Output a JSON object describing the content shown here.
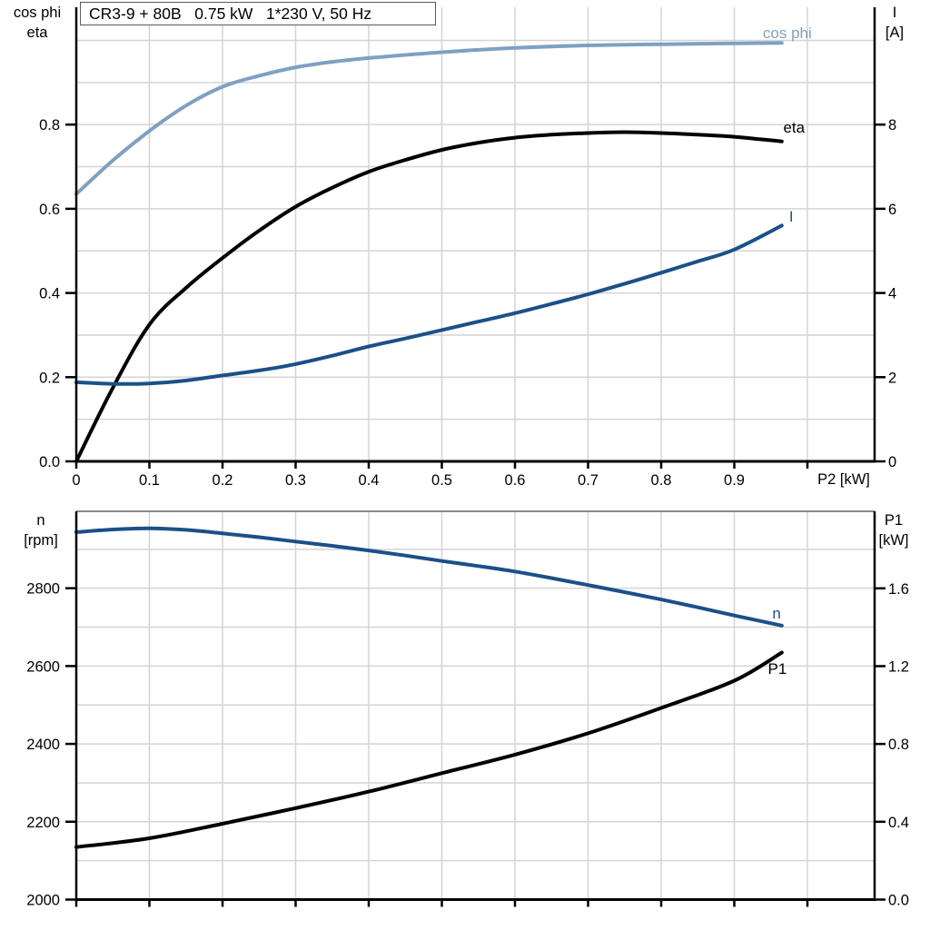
{
  "title_box": {
    "text": "CR3-9 + 80B   0.75 kW   1*230 V, 50 Hz"
  },
  "colors": {
    "light_blue": "#7FA0C2",
    "dark_blue": "#1B5088",
    "black": "#000000",
    "grid": "#D4D4D4",
    "axis": "#000000",
    "panel_border": "#8A8A8A"
  },
  "chart_data": [
    {
      "id": "motor-efficiency-chart",
      "type": "line",
      "xlabel": "P2 [kW]",
      "ylabel_left_lines": [
        "cos phi",
        "eta"
      ],
      "ylabel_right_lines": [
        "I",
        "[A]"
      ],
      "xlim": [
        0,
        1.0919
      ],
      "ylim_left": [
        0,
        1.0787
      ],
      "ylim_right": [
        0,
        10.787
      ],
      "grid": true,
      "grid_x": [
        0.1,
        0.2,
        0.3,
        0.4,
        0.5,
        0.6,
        0.7,
        0.8,
        0.9,
        1.0
      ],
      "grid_y_left": [
        0.1,
        0.2,
        0.3,
        0.4,
        0.5,
        0.6,
        0.7,
        0.8,
        0.9,
        1.0
      ],
      "x_ticks": {
        "values": [
          0,
          0.1,
          0.2,
          0.3,
          0.4,
          0.5,
          0.6,
          0.7,
          0.8,
          0.9,
          1.0
        ],
        "labels": [
          "0",
          "0.1",
          "0.2",
          "0.3",
          "0.4",
          "0.5",
          "0.6",
          "0.7",
          "0.8",
          "0.9",
          ""
        ]
      },
      "y_ticks_left": {
        "values": [
          0,
          0.2,
          0.4,
          0.6,
          0.8
        ],
        "labels": [
          "0.0",
          "0.2",
          "0.4",
          "0.6",
          "0.8"
        ]
      },
      "y_ticks_right": {
        "values": [
          0,
          2,
          4,
          6,
          8
        ],
        "labels": [
          "0",
          "2",
          "4",
          "6",
          "8"
        ]
      },
      "series": [
        {
          "name": "cos phi",
          "axis": "left",
          "color": "#7FA0C2",
          "label_at": [
            0.939,
            1.005
          ],
          "label_anchor": "start",
          "points": [
            [
              0,
              0.635
            ],
            [
              0.05,
              0.715
            ],
            [
              0.1,
              0.785
            ],
            [
              0.15,
              0.845
            ],
            [
              0.2,
              0.89
            ],
            [
              0.25,
              0.916
            ],
            [
              0.3,
              0.936
            ],
            [
              0.35,
              0.949
            ],
            [
              0.4,
              0.958
            ],
            [
              0.5,
              0.972
            ],
            [
              0.6,
              0.982
            ],
            [
              0.7,
              0.988
            ],
            [
              0.8,
              0.991
            ],
            [
              0.9,
              0.993
            ],
            [
              0.965,
              0.994
            ]
          ]
        },
        {
          "name": "eta",
          "axis": "left",
          "color": "#000000",
          "label_at": [
            0.967,
            0.781
          ],
          "label_anchor": "start",
          "points": [
            [
              0,
              0.0
            ],
            [
              0.05,
              0.175
            ],
            [
              0.1,
              0.325
            ],
            [
              0.15,
              0.412
            ],
            [
              0.2,
              0.483
            ],
            [
              0.25,
              0.548
            ],
            [
              0.3,
              0.605
            ],
            [
              0.35,
              0.65
            ],
            [
              0.4,
              0.688
            ],
            [
              0.45,
              0.716
            ],
            [
              0.5,
              0.74
            ],
            [
              0.55,
              0.757
            ],
            [
              0.6,
              0.769
            ],
            [
              0.65,
              0.776
            ],
            [
              0.7,
              0.78
            ],
            [
              0.75,
              0.782
            ],
            [
              0.8,
              0.78
            ],
            [
              0.85,
              0.776
            ],
            [
              0.9,
              0.771
            ],
            [
              0.965,
              0.76
            ]
          ]
        },
        {
          "name": "I",
          "axis": "right",
          "color": "#1B5088",
          "label_at": [
            0.975,
            5.7
          ],
          "label_anchor": "start",
          "points": [
            [
              0,
              1.88
            ],
            [
              0.05,
              1.84
            ],
            [
              0.1,
              1.85
            ],
            [
              0.15,
              1.92
            ],
            [
              0.2,
              2.04
            ],
            [
              0.25,
              2.16
            ],
            [
              0.3,
              2.31
            ],
            [
              0.35,
              2.51
            ],
            [
              0.4,
              2.73
            ],
            [
              0.45,
              2.92
            ],
            [
              0.5,
              3.12
            ],
            [
              0.55,
              3.32
            ],
            [
              0.6,
              3.52
            ],
            [
              0.65,
              3.74
            ],
            [
              0.7,
              3.97
            ],
            [
              0.75,
              4.22
            ],
            [
              0.8,
              4.48
            ],
            [
              0.85,
              4.75
            ],
            [
              0.9,
              5.03
            ],
            [
              0.965,
              5.6
            ]
          ]
        }
      ]
    },
    {
      "id": "speed-power-chart",
      "type": "line",
      "xlabel": "",
      "ylabel_left_lines": [
        "n",
        "[rpm]"
      ],
      "ylabel_right_lines": [
        "P1",
        "[kW]"
      ],
      "xlim": [
        0,
        1.0919
      ],
      "ylim_left": [
        2000,
        2997.6
      ],
      "ylim_right": [
        0,
        1.9959
      ],
      "grid": true,
      "top_border": true,
      "grid_x": [
        0.1,
        0.2,
        0.3,
        0.4,
        0.5,
        0.6,
        0.7,
        0.8,
        0.9,
        1.0
      ],
      "grid_y_left": [
        2100,
        2200,
        2300,
        2400,
        2500,
        2600,
        2700,
        2800,
        2900
      ],
      "x_ticks": {
        "values": [
          0,
          0.1,
          0.2,
          0.3,
          0.4,
          0.5,
          0.6,
          0.7,
          0.8,
          0.9,
          1.0
        ],
        "labels": [
          "",
          "",
          "",
          "",
          "",
          "",
          "",
          "",
          "",
          "",
          ""
        ]
      },
      "y_ticks_left": {
        "values": [
          2000,
          2200,
          2400,
          2600,
          2800
        ],
        "labels": [
          "2000",
          "2200",
          "2400",
          "2600",
          "2800"
        ]
      },
      "y_ticks_right": {
        "values": [
          0,
          0.4,
          0.8,
          1.2,
          1.6
        ],
        "labels": [
          "0.0",
          "0.4",
          "0.8",
          "1.2",
          "1.6"
        ]
      },
      "series": [
        {
          "name": "n",
          "axis": "left",
          "color": "#1B5088",
          "label_at": [
            0.952,
            2722
          ],
          "label_anchor": "start",
          "points": [
            [
              0,
              2944
            ],
            [
              0.05,
              2951
            ],
            [
              0.1,
              2954
            ],
            [
              0.15,
              2950
            ],
            [
              0.2,
              2941
            ],
            [
              0.25,
              2931
            ],
            [
              0.3,
              2920
            ],
            [
              0.35,
              2909
            ],
            [
              0.4,
              2897
            ],
            [
              0.45,
              2884
            ],
            [
              0.5,
              2870
            ],
            [
              0.55,
              2857
            ],
            [
              0.6,
              2843
            ],
            [
              0.65,
              2826
            ],
            [
              0.7,
              2808
            ],
            [
              0.75,
              2790
            ],
            [
              0.8,
              2771
            ],
            [
              0.85,
              2751
            ],
            [
              0.9,
              2730
            ],
            [
              0.965,
              2704
            ]
          ]
        },
        {
          "name": "P1",
          "axis": "right",
          "color": "#000000",
          "label_at": [
            0.946,
            1.16
          ],
          "label_anchor": "start",
          "points": [
            [
              0,
              0.27
            ],
            [
              0.1,
              0.315
            ],
            [
              0.2,
              0.39
            ],
            [
              0.3,
              0.47
            ],
            [
              0.4,
              0.555
            ],
            [
              0.5,
              0.65
            ],
            [
              0.6,
              0.745
            ],
            [
              0.7,
              0.855
            ],
            [
              0.8,
              0.985
            ],
            [
              0.9,
              1.125
            ],
            [
              0.965,
              1.27
            ]
          ]
        }
      ]
    }
  ]
}
